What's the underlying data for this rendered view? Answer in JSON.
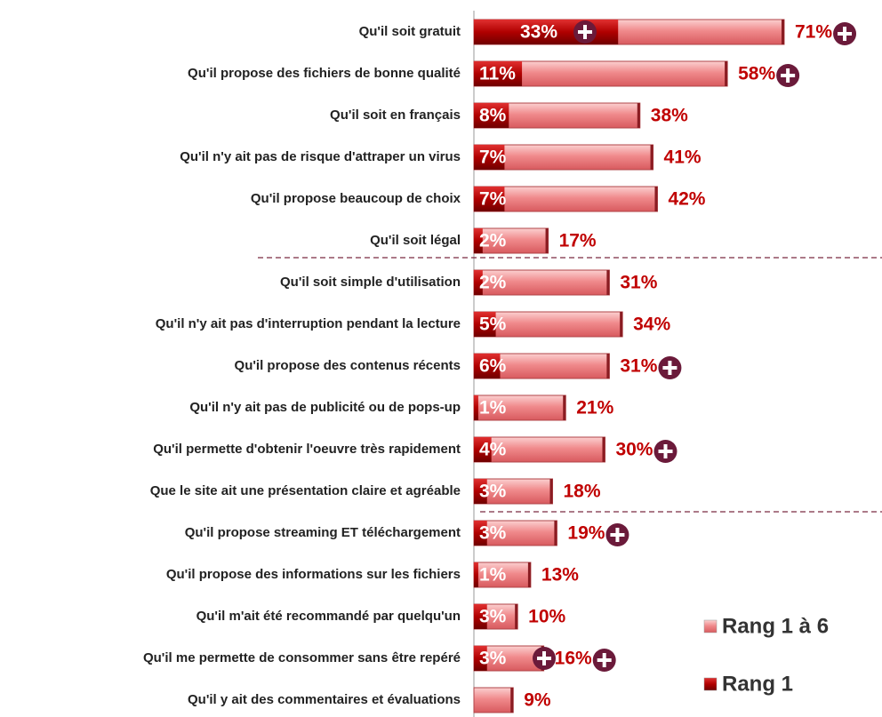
{
  "chart_data": {
    "type": "bar",
    "orientation": "horizontal",
    "categories": [
      "Qu'il soit gratuit",
      "Qu'il propose des fichiers de bonne qualité",
      "Qu'il soit en français",
      "Qu'il n'y ait pas de risque d'attraper un virus",
      "Qu'il propose beaucoup de choix",
      "Qu'il soit légal",
      "Qu'il soit simple d'utilisation",
      "Qu'il n'y ait pas d'interruption pendant la lecture",
      "Qu'il propose des contenus récents",
      "Qu'il n'y ait pas de publicité ou de pops-up",
      "Qu'il permette d'obtenir l'oeuvre très rapidement",
      "Que le site ait une présentation claire et agréable",
      "Qu'il propose streaming ET téléchargement",
      "Qu'il propose des informations sur les fichiers",
      "Qu'il m'ait été recommandé par quelqu'un",
      "Qu'il me permette de consommer sans être repéré",
      "Qu'il y ait des commentaires et évaluations"
    ],
    "series": [
      {
        "name": "Rang 1 à 6",
        "color": "#e8777a",
        "values": [
          71,
          58,
          38,
          41,
          42,
          17,
          31,
          34,
          31,
          21,
          30,
          18,
          19,
          13,
          10,
          16,
          9
        ],
        "value_labels": [
          "71%",
          "58%",
          "38%",
          "41%",
          "42%",
          "17%",
          "31%",
          "34%",
          "31%",
          "21%",
          "30%",
          "18%",
          "19%",
          "13%",
          "10%",
          "16%",
          "9%"
        ],
        "flags": [
          true,
          true,
          false,
          false,
          false,
          false,
          false,
          false,
          true,
          false,
          true,
          false,
          true,
          false,
          false,
          true,
          false
        ]
      },
      {
        "name": "Rang 1",
        "color": "#b00000",
        "values": [
          33,
          11,
          8,
          7,
          7,
          2,
          2,
          5,
          6,
          1,
          4,
          3,
          3,
          1,
          3,
          3,
          null
        ],
        "value_labels": [
          "33%",
          "11%",
          "8%",
          "7%",
          "7%",
          "2%",
          "2%",
          "5%",
          "6%",
          "1%",
          "4%",
          "3%",
          "3%",
          "1%",
          "3%",
          "3%",
          null
        ],
        "flags": [
          true,
          false,
          false,
          false,
          false,
          false,
          false,
          false,
          false,
          false,
          false,
          false,
          false,
          false,
          false,
          true,
          false
        ]
      }
    ],
    "xlim": [
      0,
      100
    ]
  }
}
